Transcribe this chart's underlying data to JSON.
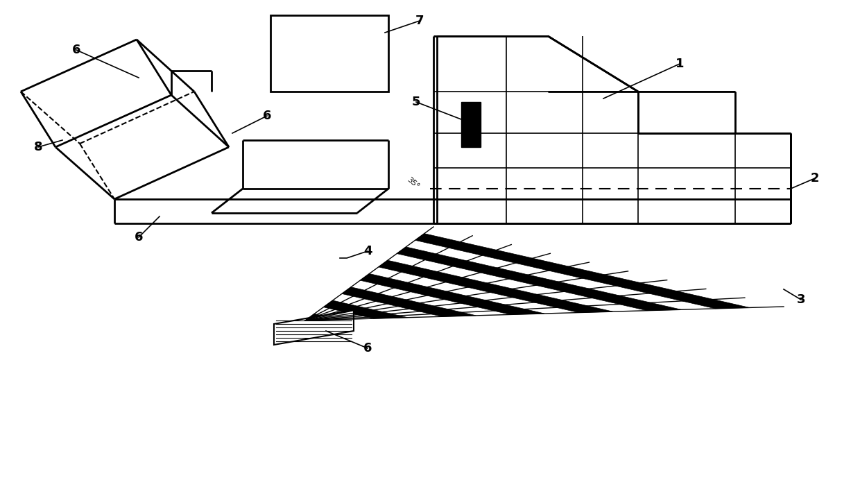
{
  "bg_color": "#ffffff",
  "line_color": "#000000",
  "label_fontsize": 13,
  "fig_width": 12.4,
  "fig_height": 7.02,
  "dpi": 100
}
